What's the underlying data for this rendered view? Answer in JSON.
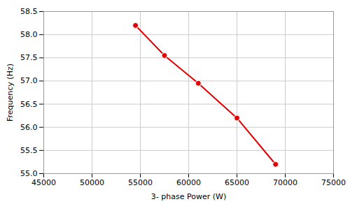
{
  "chart_data": {
    "type": "line",
    "x": [
      54500,
      57500,
      61000,
      65000,
      69000
    ],
    "values": [
      58.2,
      57.55,
      56.95,
      56.2,
      55.2
    ],
    "color": "#e00000",
    "marker": "circle",
    "xlabel": "3- phase Power (W)",
    "ylabel": "Frequency (Hz)",
    "xlim": [
      45000,
      75000
    ],
    "ylim": [
      55,
      58.5
    ],
    "xticks": [
      45000,
      50000,
      55000,
      60000,
      65000,
      70000,
      75000
    ],
    "yticks": [
      {
        "value": 55,
        "label": "55.0"
      },
      55.5,
      {
        "value": 56,
        "label": "56.0"
      },
      56.5,
      {
        "value": 57,
        "label": "57.0"
      },
      57.5,
      {
        "value": 58,
        "label": "58.0"
      },
      58.5
    ],
    "grid": true
  }
}
